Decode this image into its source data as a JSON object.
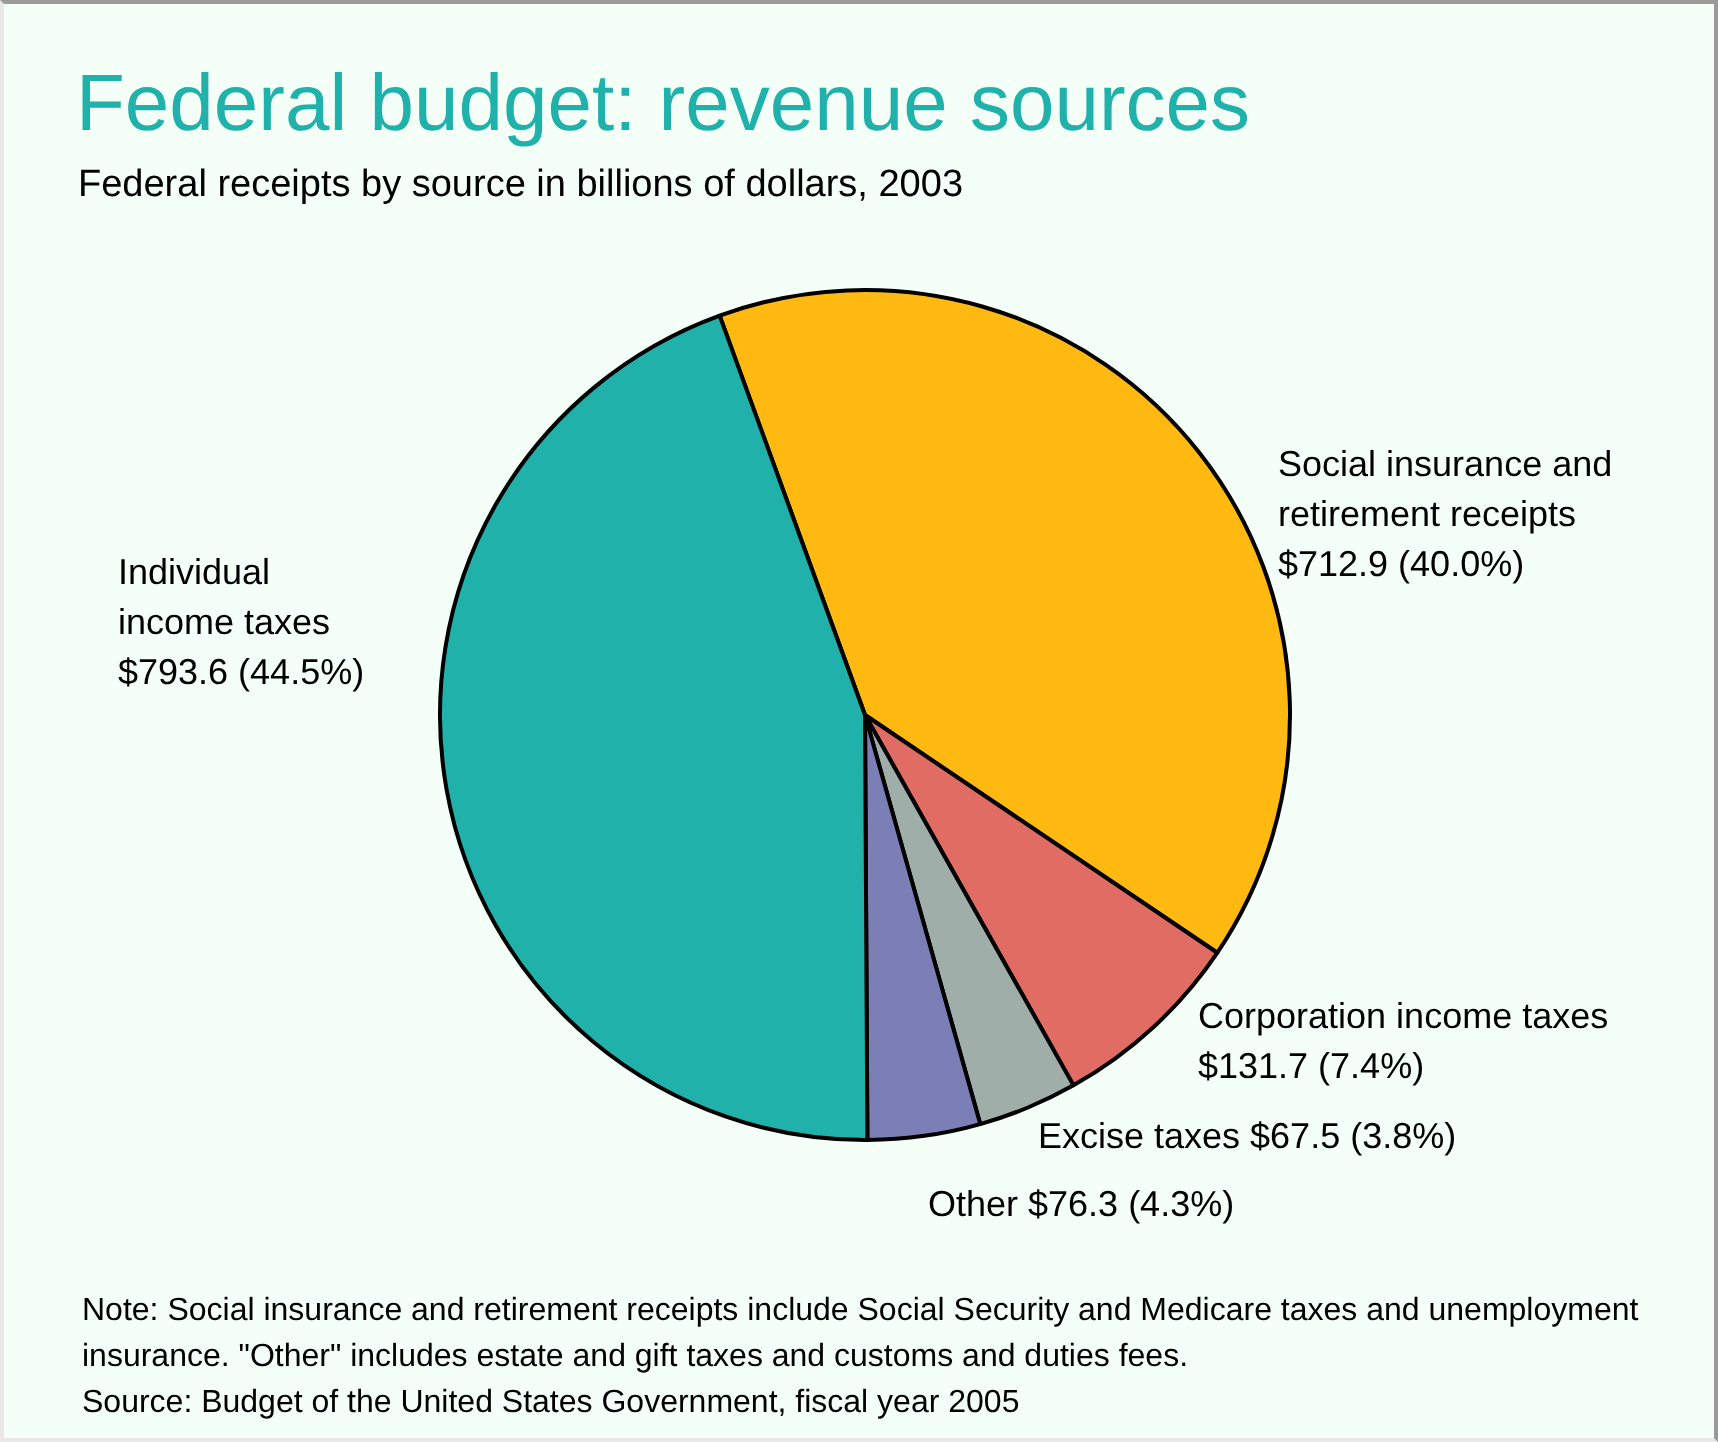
{
  "chart_data": {
    "type": "pie",
    "title": "Federal budget: revenue sources",
    "subtitle": "Federal receipts by source in billions of dollars, 2003",
    "categories": [
      "Social insurance and retirement receipts",
      "Corporation income taxes",
      "Excise taxes",
      "Other",
      "Individual income taxes"
    ],
    "values": [
      712.9,
      131.7,
      67.5,
      76.3,
      793.6
    ],
    "colors": [
      "#ffb911",
      "#e06c64",
      "#a0aeaa",
      "#7b7fb5",
      "#20b2aa"
    ],
    "value_labels": [
      "$712.9 (40.0%)",
      "$131.7 (7.4%)",
      "$67.5 (3.8%)",
      "$76.3 (4.3%)",
      "$793.6 (44.5%)"
    ],
    "legend": false,
    "annotations": [
      "Note: Social insurance and retirement receipts include Social Security and Medicare taxes and unemployment insurance. \"Other\" includes estate and gift taxes and customs and duties fees.",
      "Source: Budget of the United States Government, fiscal year 2005"
    ]
  }
}
